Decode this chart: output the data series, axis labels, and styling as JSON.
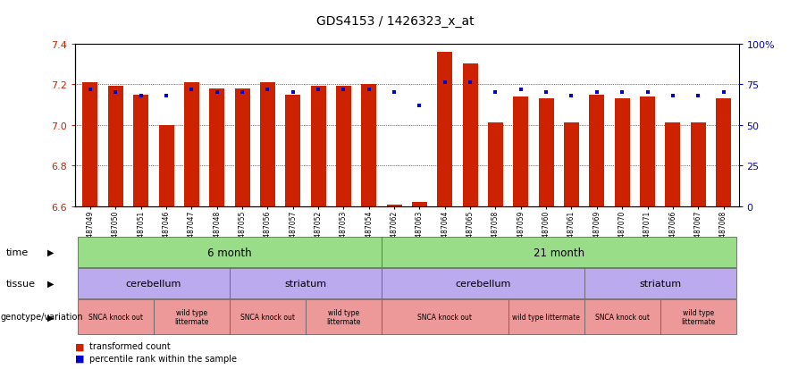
{
  "title": "GDS4153 / 1426323_x_at",
  "samples": [
    "GSM487049",
    "GSM487050",
    "GSM487051",
    "GSM487046",
    "GSM487047",
    "GSM487048",
    "GSM487055",
    "GSM487056",
    "GSM487057",
    "GSM487052",
    "GSM487053",
    "GSM487054",
    "GSM487062",
    "GSM487063",
    "GSM487064",
    "GSM487065",
    "GSM487058",
    "GSM487059",
    "GSM487060",
    "GSM487061",
    "GSM487069",
    "GSM487070",
    "GSM487071",
    "GSM487066",
    "GSM487067",
    "GSM487068"
  ],
  "bar_values": [
    7.21,
    7.19,
    7.15,
    7.0,
    7.21,
    7.18,
    7.18,
    7.21,
    7.15,
    7.19,
    7.19,
    7.2,
    6.61,
    6.62,
    7.36,
    7.3,
    7.01,
    7.14,
    7.13,
    7.01,
    7.15,
    7.13,
    7.14,
    7.01,
    7.01,
    7.13
  ],
  "percentile_values": [
    72,
    70,
    68,
    68,
    72,
    70,
    70,
    72,
    70,
    72,
    72,
    72,
    70,
    62,
    76,
    76,
    70,
    72,
    70,
    68,
    70,
    70,
    70,
    68,
    68,
    70
  ],
  "ylim_left": [
    6.6,
    7.4
  ],
  "ylim_right": [
    0,
    100
  ],
  "bar_color": "#cc2200",
  "dot_color": "#0000cc",
  "yticks_left": [
    6.6,
    6.8,
    7.0,
    7.2,
    7.4
  ],
  "yticks_right": [
    0,
    25,
    50,
    75,
    100
  ],
  "time_groups": [
    {
      "label": "6 month",
      "start": 0,
      "end": 11
    },
    {
      "label": "21 month",
      "start": 12,
      "end": 25
    }
  ],
  "tissue_groups": [
    {
      "label": "cerebellum",
      "start": 0,
      "end": 5
    },
    {
      "label": "striatum",
      "start": 6,
      "end": 11
    },
    {
      "label": "cerebellum",
      "start": 12,
      "end": 19
    },
    {
      "label": "striatum",
      "start": 20,
      "end": 25
    }
  ],
  "genotype_groups": [
    {
      "label": "SNCA knock out",
      "start": 0,
      "end": 2
    },
    {
      "label": "wild type\nlittermate",
      "start": 3,
      "end": 5
    },
    {
      "label": "SNCA knock out",
      "start": 6,
      "end": 8
    },
    {
      "label": "wild type\nlittermate",
      "start": 9,
      "end": 11
    },
    {
      "label": "SNCA knock out",
      "start": 12,
      "end": 16
    },
    {
      "label": "wild type littermate",
      "start": 17,
      "end": 19
    },
    {
      "label": "SNCA knock out",
      "start": 20,
      "end": 22
    },
    {
      "label": "wild type\nlittermate",
      "start": 23,
      "end": 25
    }
  ],
  "time_color": "#99dd88",
  "tissue_color": "#bbaaee",
  "geno_color": "#ee9999",
  "legend_items": [
    {
      "color": "#cc2200",
      "label": "transformed count"
    },
    {
      "color": "#0000cc",
      "label": "percentile rank within the sample"
    }
  ]
}
